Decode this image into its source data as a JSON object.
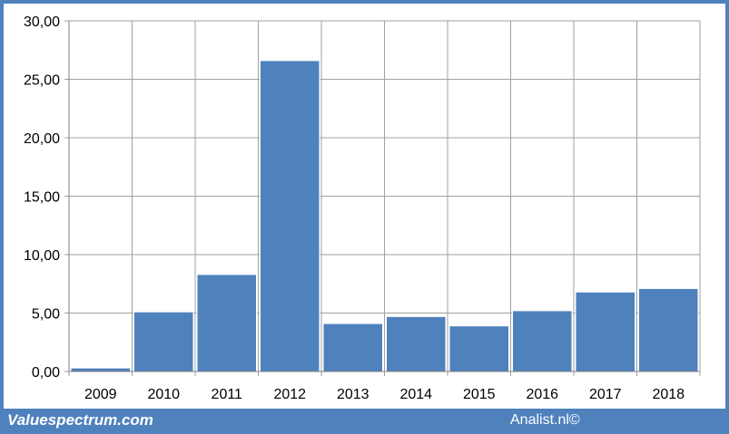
{
  "footer": {
    "left_text": "Valuespectrum.com",
    "right_text": "Analist.nl©"
  },
  "colors": {
    "frame": "#4f81bd",
    "bar": "#4f81bd",
    "grid": "#a0a0a0"
  },
  "chart_data": {
    "type": "bar",
    "categories": [
      "2009",
      "2010",
      "2011",
      "2012",
      "2013",
      "2014",
      "2015",
      "2016",
      "2017",
      "2018"
    ],
    "values": [
      0.3,
      5.1,
      8.3,
      26.6,
      4.1,
      4.7,
      3.9,
      5.2,
      6.8,
      7.1
    ],
    "ylim": [
      0,
      30
    ],
    "yticks": [
      0,
      5,
      10,
      15,
      20,
      25,
      30
    ],
    "ytick_labels": [
      "0,00",
      "5,00",
      "10,00",
      "15,00",
      "20,00",
      "25,00",
      "30,00"
    ],
    "grid": true,
    "legend": "none"
  }
}
